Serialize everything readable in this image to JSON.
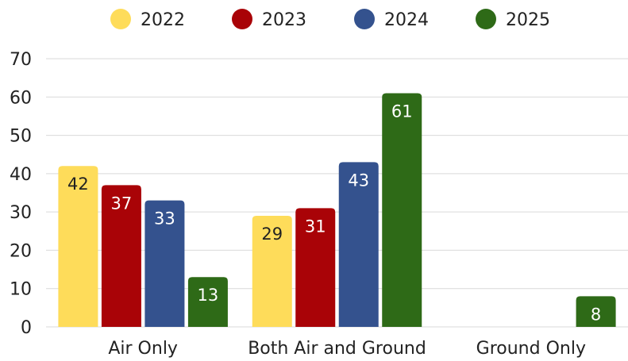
{
  "chart_data": {
    "type": "bar",
    "categories": [
      "Air Only",
      "Both Air and Ground",
      "Ground Only"
    ],
    "series": [
      {
        "name": "2022",
        "color": "#FEDC5A",
        "label_color": "#222222",
        "values": [
          42,
          29,
          null
        ]
      },
      {
        "name": "2023",
        "color": "#A90307",
        "label_color": "#ffffff",
        "values": [
          37,
          31,
          null
        ]
      },
      {
        "name": "2024",
        "color": "#34528E",
        "label_color": "#ffffff",
        "values": [
          33,
          43,
          null
        ]
      },
      {
        "name": "2025",
        "color": "#2E6A17",
        "label_color": "#ffffff",
        "values": [
          13,
          61,
          8
        ]
      }
    ],
    "ylim": [
      0,
      70
    ],
    "yticks": [
      0,
      10,
      20,
      30,
      40,
      50,
      60,
      70
    ],
    "grid": true,
    "legend": "top-center",
    "title": "",
    "xlabel": "",
    "ylabel": ""
  }
}
